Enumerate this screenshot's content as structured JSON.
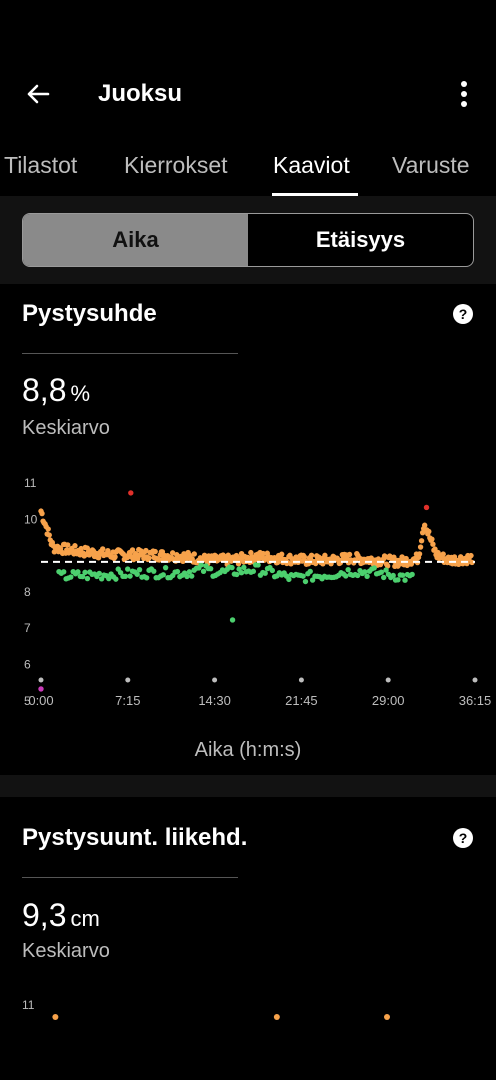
{
  "appbar": {
    "title": "Juoksu",
    "back_icon": "arrow-left-icon",
    "more_icon": "more-vert-icon"
  },
  "tabs": [
    {
      "label": "Tilastot",
      "active": false
    },
    {
      "label": "Kierrokset",
      "active": false
    },
    {
      "label": "Kaaviot",
      "active": true
    },
    {
      "label": "Varuste",
      "active": false
    }
  ],
  "segment": {
    "selected": "Aika",
    "other": "Etäisyys"
  },
  "colors": {
    "orange": "#f7a24b",
    "green": "#4ccf6e",
    "red": "#e0302a",
    "magenta": "#c83ab8",
    "tick": "#bdbdbd"
  },
  "card1": {
    "title": "Pystysuhde",
    "help_label": "?",
    "value": "8,8",
    "unit": "%",
    "avg_label": "Keskiarvo",
    "x_axis_label": "Aika (h:m:s)"
  },
  "card2": {
    "title": "Pystysuunt. liikehd.",
    "help_label": "?",
    "value": "9,3",
    "unit": "cm",
    "avg_label": "Keskiarvo"
  },
  "chart_data": [
    {
      "type": "scatter",
      "title": "",
      "xlabel": "Aika (h:m:s)",
      "ylabel": "",
      "x_ticks": [
        "0:00",
        "7:15",
        "14:30",
        "21:45",
        "29:00",
        "36:15"
      ],
      "y_ticks": [
        "5",
        "6",
        "7",
        "8",
        "9",
        "10",
        "11"
      ],
      "y_tick_labels_shown": [
        "11",
        "10",
        "8",
        "7",
        "6",
        "5"
      ],
      "x_range_min": [
        0,
        36.25
      ],
      "ylim": [
        5,
        11
      ],
      "average_line": 8.8,
      "grid": false,
      "series": [
        {
          "color": "orange",
          "trend": [
            [
              0,
              10.2
            ],
            [
              1,
              9.2
            ],
            [
              3,
              9.1
            ],
            [
              6,
              9.0
            ],
            [
              9,
              9.0
            ],
            [
              12,
              8.95
            ],
            [
              14,
              8.85
            ],
            [
              16,
              8.85
            ],
            [
              18,
              8.95
            ],
            [
              20,
              8.9
            ],
            [
              22,
              8.85
            ],
            [
              24,
              8.85
            ],
            [
              26,
              8.9
            ],
            [
              28,
              8.85
            ],
            [
              30,
              8.8
            ],
            [
              31.5,
              8.9
            ],
            [
              32,
              9.9
            ],
            [
              33,
              9.0
            ],
            [
              34,
              8.85
            ],
            [
              36,
              8.9
            ]
          ]
        },
        {
          "color": "green",
          "trend": [
            [
              1.5,
              8.4
            ],
            [
              9,
              8.5
            ],
            [
              12,
              8.5
            ],
            [
              13.5,
              8.6
            ],
            [
              15,
              8.5
            ],
            [
              18,
              8.6
            ],
            [
              21,
              8.35
            ],
            [
              24,
              8.45
            ],
            [
              26,
              8.55
            ],
            [
              28,
              8.5
            ],
            [
              30,
              8.4
            ],
            [
              31,
              8.35
            ]
          ]
        },
        {
          "color": "red",
          "points": [
            [
              7.5,
              10.7
            ],
            [
              32.2,
              10.3
            ]
          ]
        },
        {
          "color": "magenta",
          "points": [
            [
              0,
              5.3
            ]
          ]
        },
        {
          "color": "green",
          "points": [
            [
              16,
              7.2
            ]
          ]
        }
      ]
    },
    {
      "type": "scatter",
      "title": "",
      "y_ticks": [
        "11"
      ],
      "note": "chart partially visible",
      "series": [
        {
          "color": "orange",
          "points": [
            [
              1.2,
              11
            ],
            [
              19.7,
              11
            ],
            [
              28.9,
              11
            ]
          ]
        }
      ]
    }
  ]
}
